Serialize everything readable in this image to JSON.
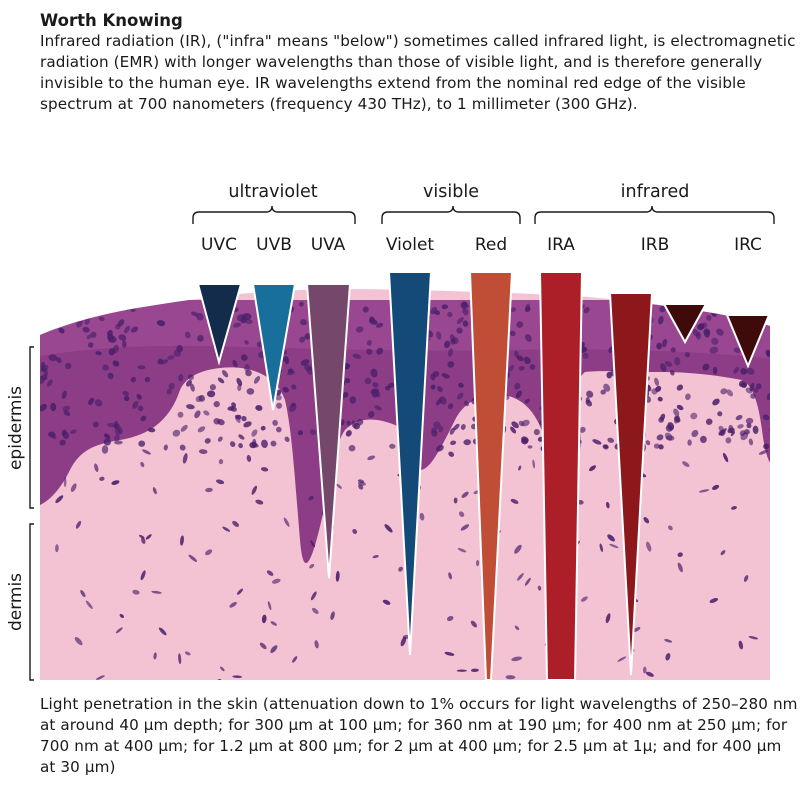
{
  "intro": {
    "title": "Worth Knowing",
    "text": "Infrared radiation (IR), (\"infra\" means \"below\") sometimes called infrared light, is electromagnetic radiation (EMR) with longer wavelengths than those of visible light, and is therefore generally invisible to the human eye. IR wavelengths extend from the nominal red edge of the visible spectrum at 700 nanometers (frequency 430 THz), to 1 millimeter (300 GHz)."
  },
  "groups": [
    {
      "label": "ultraviolet"
    },
    {
      "label": "visible"
    },
    {
      "label": "infrared"
    }
  ],
  "bands": [
    {
      "label": "UVC",
      "color": "#132c4b"
    },
    {
      "label": "UVB",
      "color": "#186f9b"
    },
    {
      "label": "UVA",
      "color": "#74476b"
    },
    {
      "label": "Violet",
      "color": "#134a78"
    },
    {
      "label": "Red",
      "color": "#c04d36"
    },
    {
      "label": "IRA",
      "color": "#ad1f28"
    },
    {
      "label": "IRB",
      "color": "#8c181b"
    },
    {
      "label": "IRC",
      "color": "#3f0a0a"
    }
  ],
  "layers": {
    "epidermis": "epidermis",
    "dermis": "dermis"
  },
  "colors": {
    "dermis_tissue": "#f4c3d3",
    "epidermis_tissue": "#8c3d86",
    "nuclei": "#4a1f6b"
  },
  "caption": "Light penetration in the skin (attenuation down to 1% occurs for light wavelengths of 250–280 nm at around 40 μm depth; for 300 μm at 100 μm; for 360 nm at 190 μm; for 400 nm at 250 μm; for 700 nm at 400 μm; for 1.2 μm at 800 μm; for 2 μm at 400 μm; for 2.5 μm at 1μ; and for 400 μm at 30 μm)"
}
